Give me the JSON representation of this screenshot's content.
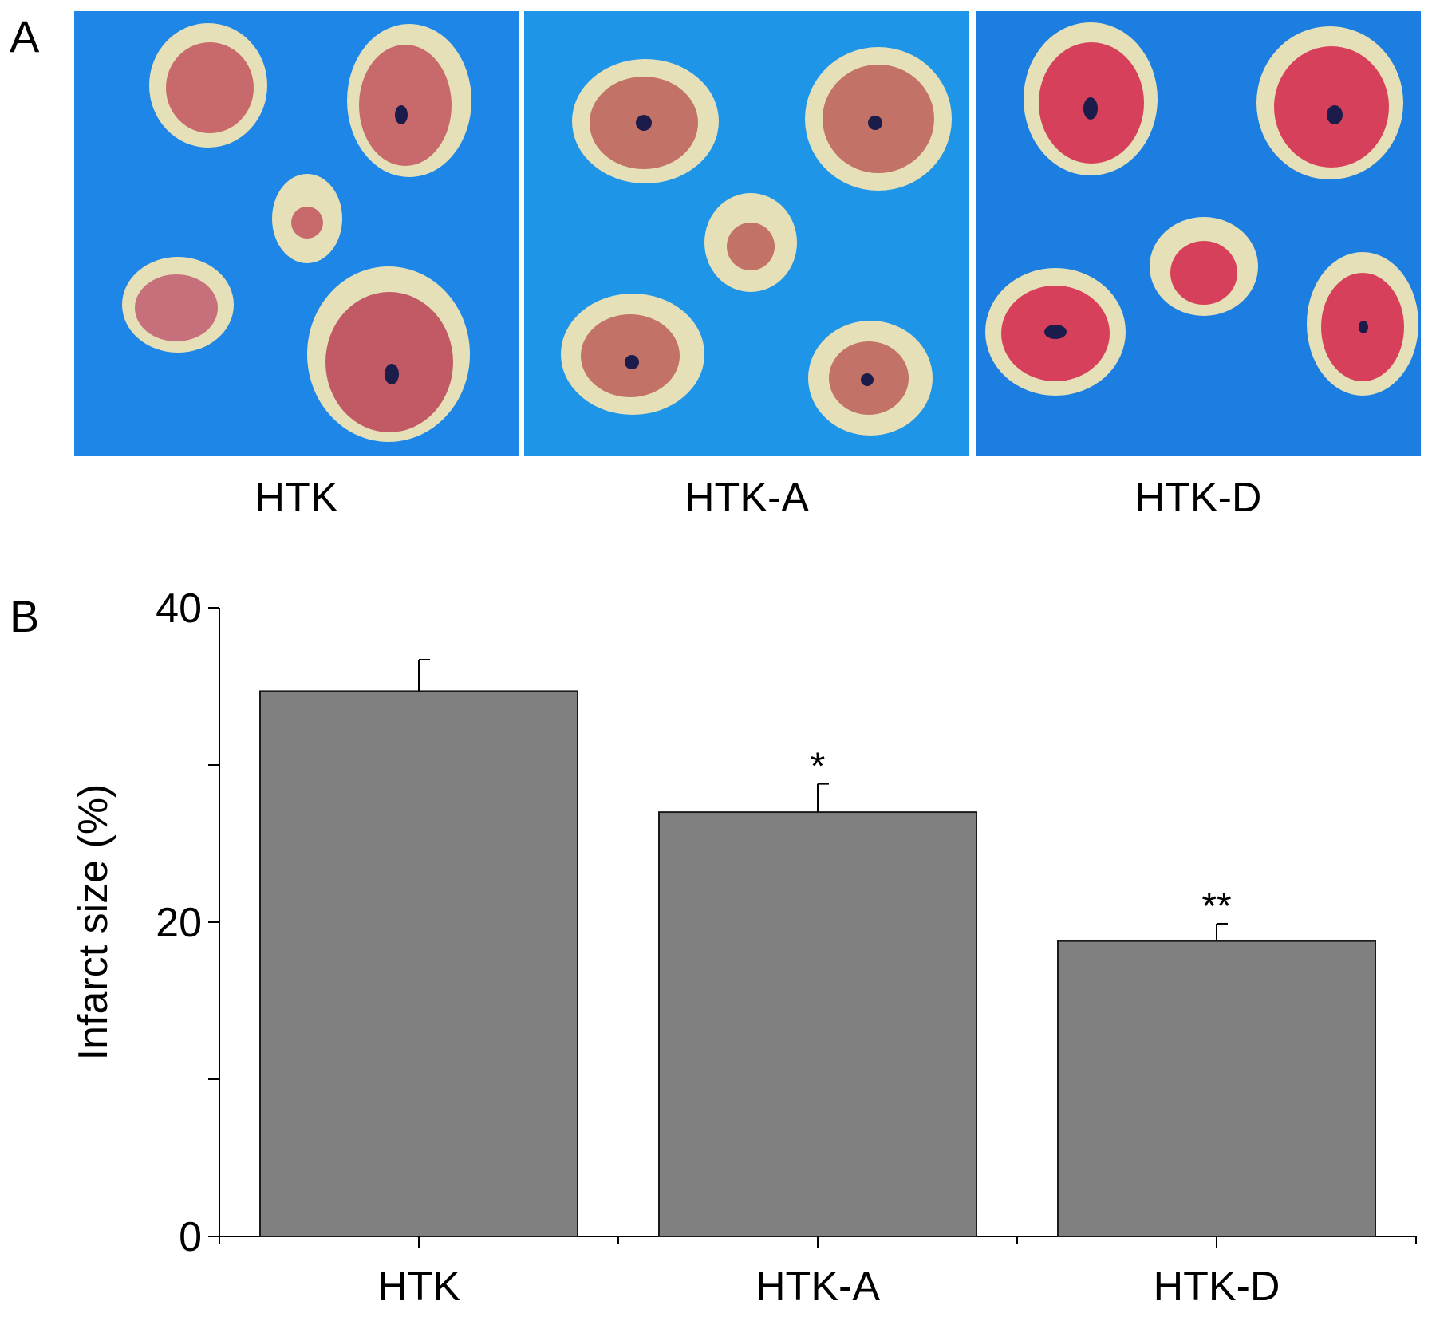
{
  "panel_a": {
    "label": "A",
    "photos": [
      {
        "caption": "HTK",
        "bg": "#1d86e6"
      },
      {
        "caption": "HTK-A",
        "bg": "#1f95e8"
      },
      {
        "caption": "HTK-D",
        "bg": "#1b7ee0"
      }
    ]
  },
  "panel_b": {
    "label": "B"
  },
  "chart_data": {
    "type": "bar",
    "categories": [
      "HTK",
      "HTK-A",
      "HTK-D"
    ],
    "values": [
      34.7,
      27.0,
      18.8
    ],
    "errors": [
      2.0,
      1.8,
      1.1
    ],
    "annotations": [
      "",
      "*",
      "**"
    ],
    "ylabel": "Infarct size (%)",
    "xlabel": "",
    "ylim": [
      0,
      40
    ],
    "yticks": [
      0,
      20,
      40
    ],
    "bar_color": "#808080",
    "grid": false
  }
}
